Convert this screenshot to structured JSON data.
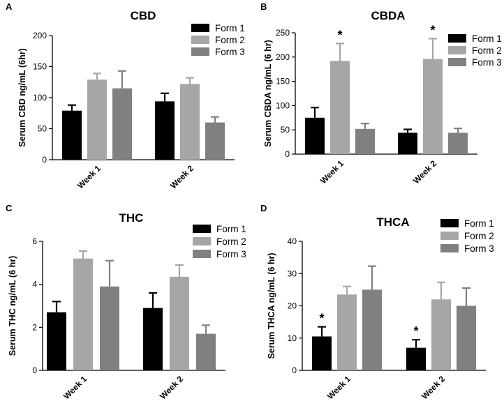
{
  "figure": {
    "series_colors": {
      "Form 1": "#000000",
      "Form 2": "#a6a6a6",
      "Form 3": "#808080"
    }
  },
  "chart_data": [
    {
      "panel": "A",
      "type": "bar",
      "title": "CBD",
      "xlabel": "",
      "ylabel": "Serum CBD ng/mL (6hr)",
      "categories": [
        "Week 1",
        "Week 2"
      ],
      "ylim": [
        0,
        200
      ],
      "yticks": [
        0,
        50,
        100,
        150,
        200
      ],
      "series": [
        {
          "name": "Form 1",
          "values": [
            79,
            94
          ],
          "errors": [
            9,
            13
          ],
          "significant": [
            false,
            false
          ]
        },
        {
          "name": "Form 2",
          "values": [
            129,
            122
          ],
          "errors": [
            10,
            10
          ],
          "significant": [
            false,
            false
          ]
        },
        {
          "name": "Form 3",
          "values": [
            115,
            60
          ],
          "errors": [
            28,
            9
          ],
          "significant": [
            false,
            false
          ]
        }
      ],
      "legend": "top-right"
    },
    {
      "panel": "B",
      "type": "bar",
      "title": "CBDA",
      "xlabel": "",
      "ylabel": "Serum CBDA ng/mL (6 hr)",
      "categories": [
        "Week 1",
        "Week 2"
      ],
      "ylim": [
        0,
        250
      ],
      "yticks": [
        0,
        50,
        100,
        150,
        200,
        250
      ],
      "series": [
        {
          "name": "Form 1",
          "values": [
            75,
            44
          ],
          "errors": [
            21,
            7
          ],
          "significant": [
            false,
            false
          ]
        },
        {
          "name": "Form 2",
          "values": [
            192,
            196
          ],
          "errors": [
            36,
            42
          ],
          "significant": [
            true,
            true
          ]
        },
        {
          "name": "Form 3",
          "values": [
            52,
            44
          ],
          "errors": [
            11,
            9
          ],
          "significant": [
            false,
            false
          ]
        }
      ],
      "legend": "top-right"
    },
    {
      "panel": "C",
      "type": "bar",
      "title": "THC",
      "xlabel": "",
      "ylabel": "Serum THC ng/mL (6 hr)",
      "categories": [
        "Week 1",
        "Week 2"
      ],
      "ylim": [
        0,
        6
      ],
      "yticks": [
        0,
        2,
        4,
        6
      ],
      "series": [
        {
          "name": "Form 1",
          "values": [
            2.7,
            2.9
          ],
          "errors": [
            0.5,
            0.7
          ],
          "significant": [
            false,
            false
          ]
        },
        {
          "name": "Form 2",
          "values": [
            5.2,
            4.35
          ],
          "errors": [
            0.35,
            0.55
          ],
          "significant": [
            false,
            false
          ]
        },
        {
          "name": "Form 3",
          "values": [
            3.9,
            1.7
          ],
          "errors": [
            1.2,
            0.4
          ],
          "significant": [
            false,
            false
          ]
        }
      ],
      "legend": "top-right"
    },
    {
      "panel": "D",
      "type": "bar",
      "title": "THCA",
      "xlabel": "",
      "ylabel": "Serum THCA ng/mL (6 hr)",
      "categories": [
        "Week 1",
        "Week 2"
      ],
      "ylim": [
        0,
        40
      ],
      "yticks": [
        0,
        10,
        20,
        30,
        40
      ],
      "series": [
        {
          "name": "Form 1",
          "values": [
            10.5,
            7
          ],
          "errors": [
            3,
            2.5
          ],
          "significant": [
            true,
            true
          ]
        },
        {
          "name": "Form 2",
          "values": [
            23.5,
            22
          ],
          "errors": [
            2.5,
            5.3
          ],
          "significant": [
            false,
            false
          ]
        },
        {
          "name": "Form 3",
          "values": [
            25,
            20
          ],
          "errors": [
            7.3,
            5.5
          ],
          "significant": [
            false,
            false
          ]
        }
      ],
      "legend": "top-right"
    }
  ]
}
